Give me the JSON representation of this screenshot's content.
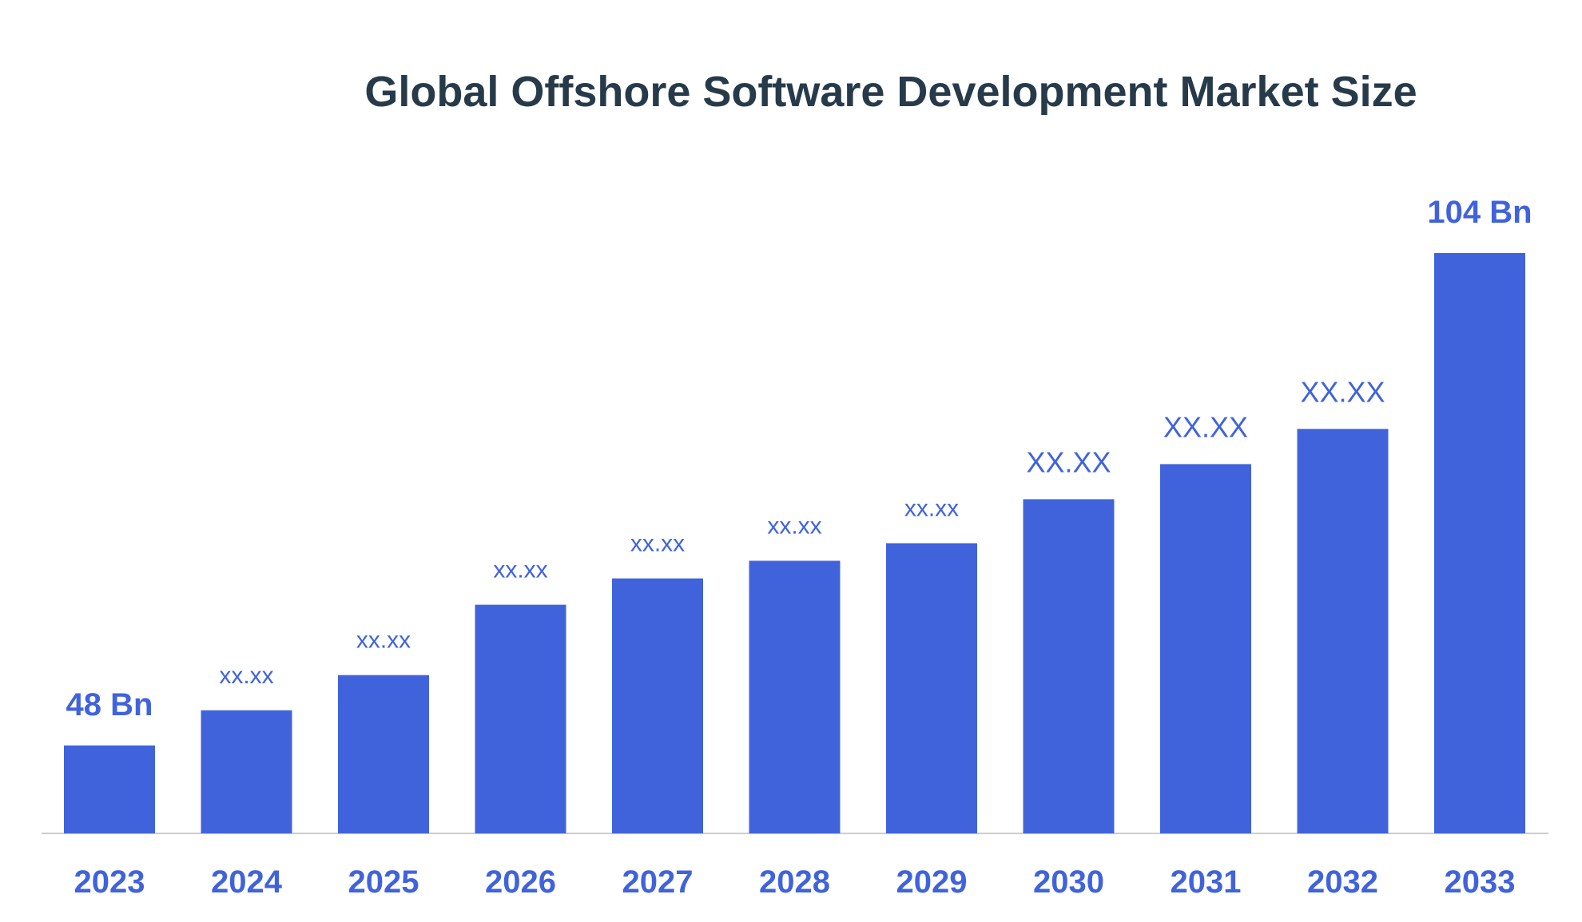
{
  "colors": {
    "bar": "#4063dc",
    "label": "#4063dc",
    "title": "#263a4a",
    "axis": "#cccccc"
  },
  "chart_data": {
    "type": "bar",
    "title": "Global Offshore Software Development Market Size",
    "xlabel": "",
    "ylabel": "",
    "categories": [
      "2023",
      "2024",
      "2025",
      "2026",
      "2027",
      "2028",
      "2029",
      "2030",
      "2031",
      "2032",
      "2033"
    ],
    "values": [
      48,
      52,
      56,
      64,
      67,
      69,
      71,
      76,
      80,
      84,
      104
    ],
    "data_labels": [
      "48 Bn",
      "xx.xx",
      "xx.xx",
      "xx.xx",
      "xx.xx",
      "xx.xx",
      "xx.xx",
      "XX.XX",
      "XX.XX",
      "XX.XX",
      "104 Bn"
    ],
    "label_styles": [
      "emph",
      "sm",
      "sm",
      "sm",
      "sm",
      "sm",
      "sm",
      "md",
      "md",
      "md",
      "emph"
    ],
    "ylim": [
      38,
      104
    ],
    "grid": false,
    "legend": "none"
  }
}
